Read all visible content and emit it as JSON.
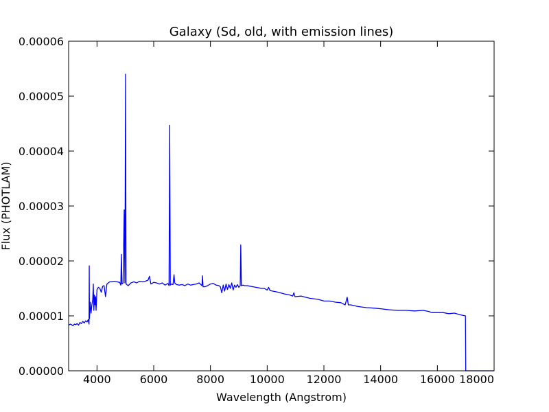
{
  "chart_data": {
    "type": "line",
    "title": "Galaxy (Sd, old, with emission lines)",
    "xlabel": "Wavelength (Angstrom)",
    "ylabel": "Flux (PHOTLAM)",
    "xlim": [
      3000,
      18000
    ],
    "ylim": [
      0,
      6e-05
    ],
    "xticks": [
      4000,
      6000,
      8000,
      10000,
      12000,
      14000,
      16000,
      18000
    ],
    "xtick_labels": [
      "4000",
      "6000",
      "8000",
      "10000",
      "12000",
      "14000",
      "16000",
      "18000"
    ],
    "yticks": [
      0,
      1e-05,
      2e-05,
      3e-05,
      4e-05,
      5e-05,
      6e-05
    ],
    "ytick_labels": [
      "0.00000",
      "0.00001",
      "0.00002",
      "0.00003",
      "0.00004",
      "0.00005",
      "0.00006"
    ],
    "grid": false,
    "line_color": "#0000ff",
    "series": [
      {
        "x": [
          3000,
          3060,
          3100,
          3150,
          3200,
          3250,
          3300,
          3350,
          3400,
          3450,
          3500,
          3550,
          3600,
          3650,
          3690,
          3720,
          3727,
          3735,
          3760,
          3790,
          3820,
          3850,
          3870,
          3890,
          3910,
          3930,
          3950,
          3968,
          3985,
          4000,
          4050,
          4100,
          4150,
          4200,
          4250,
          4300,
          4350,
          4400,
          4450,
          4500,
          4600,
          4700,
          4800,
          4840,
          4861,
          4880,
          4920,
          4959,
          4985,
          5007,
          5025,
          5100,
          5200,
          5300,
          5400,
          5500,
          5600,
          5700,
          5800,
          5850,
          5900,
          6000,
          6100,
          6200,
          6300,
          6400,
          6500,
          6540,
          6563,
          6585,
          6620,
          6680,
          6716,
          6740,
          6800,
          6900,
          7000,
          7100,
          7200,
          7300,
          7400,
          7500,
          7600,
          7700,
          7720,
          7740,
          7800,
          7900,
          8000,
          8100,
          8200,
          8300,
          8350,
          8400,
          8450,
          8500,
          8550,
          8600,
          8650,
          8700,
          8750,
          8800,
          8850,
          8900,
          8950,
          9000,
          9050,
          9069,
          9090,
          9150,
          9200,
          9300,
          9400,
          9500,
          9600,
          9700,
          9800,
          9900,
          10000,
          10050,
          10100,
          10200,
          10400,
          10600,
          10800,
          10900,
          10940,
          10980,
          11200,
          11500,
          11800,
          12000,
          12200,
          12400,
          12600,
          12750,
          12820,
          12860,
          12950,
          13200,
          13500,
          13800,
          14000,
          14300,
          14600,
          14900,
          15200,
          15500,
          15700,
          15800,
          16000,
          16200,
          16400,
          16600,
          16800,
          16990,
          17000,
          17100,
          17500,
          18000
        ],
        "y": [
          8.3e-06,
          8.5e-06,
          8.4e-06,
          8.2e-06,
          8.5e-06,
          8.4e-06,
          8.6e-06,
          8.3e-06,
          8.8e-06,
          8.6e-06,
          9e-06,
          8.7e-06,
          9.1e-06,
          8.9e-06,
          9.3e-06,
          8.5e-06,
          1.91e-05,
          9.5e-06,
          1.25e-05,
          1.05e-05,
          1.2e-05,
          1.3e-05,
          1.58e-05,
          1.1e-05,
          1.38e-05,
          1.2e-05,
          1.35e-05,
          1.1e-05,
          1.3e-05,
          1.48e-05,
          1.52e-05,
          1.5e-05,
          1.43e-05,
          1.54e-05,
          1.55e-05,
          1.35e-05,
          1.58e-05,
          1.6e-05,
          1.62e-05,
          1.62e-05,
          1.63e-05,
          1.62e-05,
          1.61e-05,
          1.56e-05,
          2.12e-05,
          1.58e-05,
          1.6e-05,
          2.93e-05,
          1.6e-05,
          5.4e-05,
          1.58e-05,
          1.55e-05,
          1.6e-05,
          1.62e-05,
          1.6e-05,
          1.63e-05,
          1.62e-05,
          1.63e-05,
          1.65e-05,
          1.72e-05,
          1.58e-05,
          1.61e-05,
          1.6e-05,
          1.58e-05,
          1.6e-05,
          1.56e-05,
          1.59e-05,
          1.55e-05,
          4.47e-05,
          1.56e-05,
          1.58e-05,
          1.57e-05,
          1.75e-05,
          1.6e-05,
          1.57e-05,
          1.56e-05,
          1.57e-05,
          1.55e-05,
          1.58e-05,
          1.56e-05,
          1.57e-05,
          1.58e-05,
          1.6e-05,
          1.55e-05,
          1.73e-05,
          1.53e-05,
          1.53e-05,
          1.55e-05,
          1.58e-05,
          1.59e-05,
          1.56e-05,
          1.55e-05,
          1.53e-05,
          1.42e-05,
          1.56e-05,
          1.45e-05,
          1.58e-05,
          1.48e-05,
          1.57e-05,
          1.5e-05,
          1.6e-05,
          1.47e-05,
          1.56e-05,
          1.52e-05,
          1.57e-05,
          1.52e-05,
          1.55e-05,
          2.29e-05,
          1.55e-05,
          1.56e-05,
          1.55e-05,
          1.55e-05,
          1.54e-05,
          1.53e-05,
          1.52e-05,
          1.51e-05,
          1.5e-05,
          1.5e-05,
          1.47e-05,
          1.52e-05,
          1.46e-05,
          1.45e-05,
          1.43e-05,
          1.4e-05,
          1.38e-05,
          1.36e-05,
          1.42e-05,
          1.35e-05,
          1.36e-05,
          1.32e-05,
          1.3e-05,
          1.27e-05,
          1.27e-05,
          1.25e-05,
          1.24e-05,
          1.2e-05,
          1.34e-05,
          1.2e-05,
          1.2e-05,
          1.17e-05,
          1.15e-05,
          1.14e-05,
          1.13e-05,
          1.11e-05,
          1.1e-05,
          1.1e-05,
          1.09e-05,
          1.1e-05,
          1.08e-05,
          1.06e-05,
          1.06e-05,
          1.06e-05,
          1.04e-05,
          1.05e-05,
          1.02e-05,
          1e-05,
          0,
          0,
          0,
          0
        ]
      }
    ]
  }
}
